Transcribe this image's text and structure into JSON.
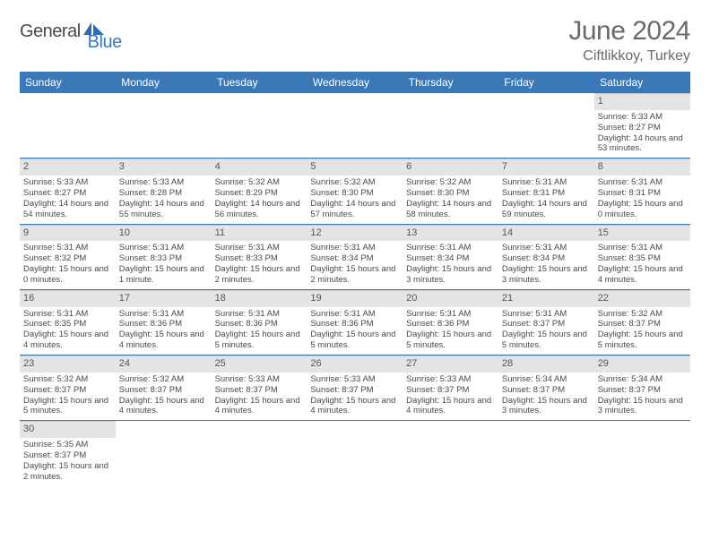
{
  "brand": {
    "name1": "General",
    "name2": "Blue"
  },
  "title": "June 2024",
  "location": "Ciftlikkoy, Turkey",
  "colors": {
    "header_bg": "#3b78b8",
    "header_text": "#ffffff",
    "daynum_bg": "#e4e4e4",
    "text": "#4a4a4a",
    "title_text": "#6a6a6a",
    "divider": "#3b78b8"
  },
  "day_headers": [
    "Sunday",
    "Monday",
    "Tuesday",
    "Wednesday",
    "Thursday",
    "Friday",
    "Saturday"
  ],
  "weeks": [
    [
      null,
      null,
      null,
      null,
      null,
      null,
      {
        "n": "1",
        "sunrise": "5:33 AM",
        "sunset": "8:27 PM",
        "daylight": "14 hours and 53 minutes."
      }
    ],
    [
      {
        "n": "2",
        "sunrise": "5:33 AM",
        "sunset": "8:27 PM",
        "daylight": "14 hours and 54 minutes."
      },
      {
        "n": "3",
        "sunrise": "5:33 AM",
        "sunset": "8:28 PM",
        "daylight": "14 hours and 55 minutes."
      },
      {
        "n": "4",
        "sunrise": "5:32 AM",
        "sunset": "8:29 PM",
        "daylight": "14 hours and 56 minutes."
      },
      {
        "n": "5",
        "sunrise": "5:32 AM",
        "sunset": "8:30 PM",
        "daylight": "14 hours and 57 minutes."
      },
      {
        "n": "6",
        "sunrise": "5:32 AM",
        "sunset": "8:30 PM",
        "daylight": "14 hours and 58 minutes."
      },
      {
        "n": "7",
        "sunrise": "5:31 AM",
        "sunset": "8:31 PM",
        "daylight": "14 hours and 59 minutes."
      },
      {
        "n": "8",
        "sunrise": "5:31 AM",
        "sunset": "8:31 PM",
        "daylight": "15 hours and 0 minutes."
      }
    ],
    [
      {
        "n": "9",
        "sunrise": "5:31 AM",
        "sunset": "8:32 PM",
        "daylight": "15 hours and 0 minutes."
      },
      {
        "n": "10",
        "sunrise": "5:31 AM",
        "sunset": "8:33 PM",
        "daylight": "15 hours and 1 minute."
      },
      {
        "n": "11",
        "sunrise": "5:31 AM",
        "sunset": "8:33 PM",
        "daylight": "15 hours and 2 minutes."
      },
      {
        "n": "12",
        "sunrise": "5:31 AM",
        "sunset": "8:34 PM",
        "daylight": "15 hours and 2 minutes."
      },
      {
        "n": "13",
        "sunrise": "5:31 AM",
        "sunset": "8:34 PM",
        "daylight": "15 hours and 3 minutes."
      },
      {
        "n": "14",
        "sunrise": "5:31 AM",
        "sunset": "8:34 PM",
        "daylight": "15 hours and 3 minutes."
      },
      {
        "n": "15",
        "sunrise": "5:31 AM",
        "sunset": "8:35 PM",
        "daylight": "15 hours and 4 minutes."
      }
    ],
    [
      {
        "n": "16",
        "sunrise": "5:31 AM",
        "sunset": "8:35 PM",
        "daylight": "15 hours and 4 minutes."
      },
      {
        "n": "17",
        "sunrise": "5:31 AM",
        "sunset": "8:36 PM",
        "daylight": "15 hours and 4 minutes."
      },
      {
        "n": "18",
        "sunrise": "5:31 AM",
        "sunset": "8:36 PM",
        "daylight": "15 hours and 5 minutes."
      },
      {
        "n": "19",
        "sunrise": "5:31 AM",
        "sunset": "8:36 PM",
        "daylight": "15 hours and 5 minutes."
      },
      {
        "n": "20",
        "sunrise": "5:31 AM",
        "sunset": "8:36 PM",
        "daylight": "15 hours and 5 minutes."
      },
      {
        "n": "21",
        "sunrise": "5:31 AM",
        "sunset": "8:37 PM",
        "daylight": "15 hours and 5 minutes."
      },
      {
        "n": "22",
        "sunrise": "5:32 AM",
        "sunset": "8:37 PM",
        "daylight": "15 hours and 5 minutes."
      }
    ],
    [
      {
        "n": "23",
        "sunrise": "5:32 AM",
        "sunset": "8:37 PM",
        "daylight": "15 hours and 5 minutes."
      },
      {
        "n": "24",
        "sunrise": "5:32 AM",
        "sunset": "8:37 PM",
        "daylight": "15 hours and 4 minutes."
      },
      {
        "n": "25",
        "sunrise": "5:33 AM",
        "sunset": "8:37 PM",
        "daylight": "15 hours and 4 minutes."
      },
      {
        "n": "26",
        "sunrise": "5:33 AM",
        "sunset": "8:37 PM",
        "daylight": "15 hours and 4 minutes."
      },
      {
        "n": "27",
        "sunrise": "5:33 AM",
        "sunset": "8:37 PM",
        "daylight": "15 hours and 4 minutes."
      },
      {
        "n": "28",
        "sunrise": "5:34 AM",
        "sunset": "8:37 PM",
        "daylight": "15 hours and 3 minutes."
      },
      {
        "n": "29",
        "sunrise": "5:34 AM",
        "sunset": "8:37 PM",
        "daylight": "15 hours and 3 minutes."
      }
    ],
    [
      {
        "n": "30",
        "sunrise": "5:35 AM",
        "sunset": "8:37 PM",
        "daylight": "15 hours and 2 minutes."
      },
      null,
      null,
      null,
      null,
      null,
      null
    ]
  ],
  "labels": {
    "sunrise": "Sunrise: ",
    "sunset": "Sunset: ",
    "daylight": "Daylight: "
  }
}
